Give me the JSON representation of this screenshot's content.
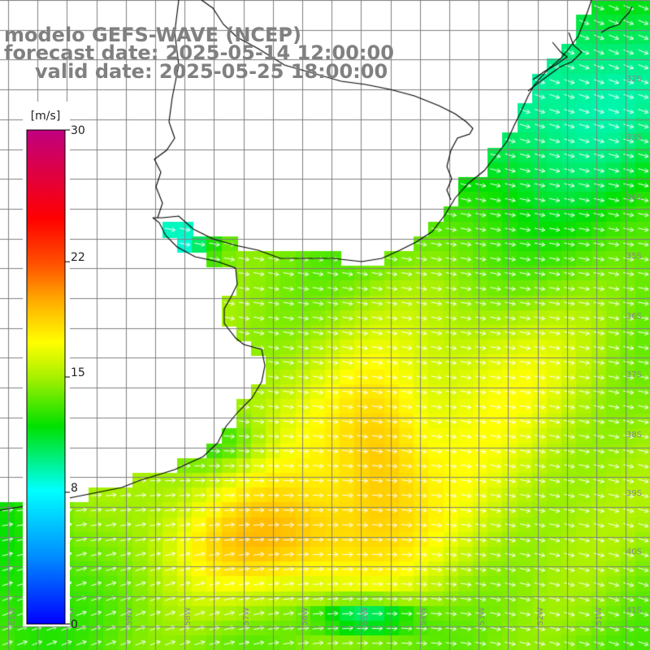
{
  "title": {
    "line1": "modelo GEFS-WAVE (NCEP)",
    "line2": "forecast date: 2025-05-14 12:00:00",
    "line3": "valid date: 2025-05-25 18:00:00"
  },
  "colorbar": {
    "unit": "[m/s]",
    "ticks": [
      {
        "value": 30,
        "label": "30"
      },
      {
        "value": 22,
        "label": "22"
      },
      {
        "value": 15,
        "label": "15"
      },
      {
        "value": 8,
        "label": "8"
      },
      {
        "value": 0,
        "label": "0"
      }
    ],
    "range": [
      0,
      30
    ]
  },
  "grid": {
    "lat_labels": [
      "32S",
      "33S",
      "34S",
      "35S",
      "36S",
      "37S",
      "38S",
      "39S",
      "40S",
      "41S"
    ],
    "lon_labels": [
      "61W",
      "60W",
      "59W",
      "58W",
      "57W",
      "56W",
      "55W",
      "54W",
      "53W",
      "52W",
      "51W"
    ]
  },
  "field": {
    "variable": "wind speed",
    "units": "m/s",
    "description": "gridded wind speed field shown with wind direction arrows over ocean; land is white"
  },
  "colors": {
    "land": "#ffffff",
    "grid": "#808080",
    "coast": "#000000",
    "arrow": "#ffffff",
    "title": "#808080"
  }
}
